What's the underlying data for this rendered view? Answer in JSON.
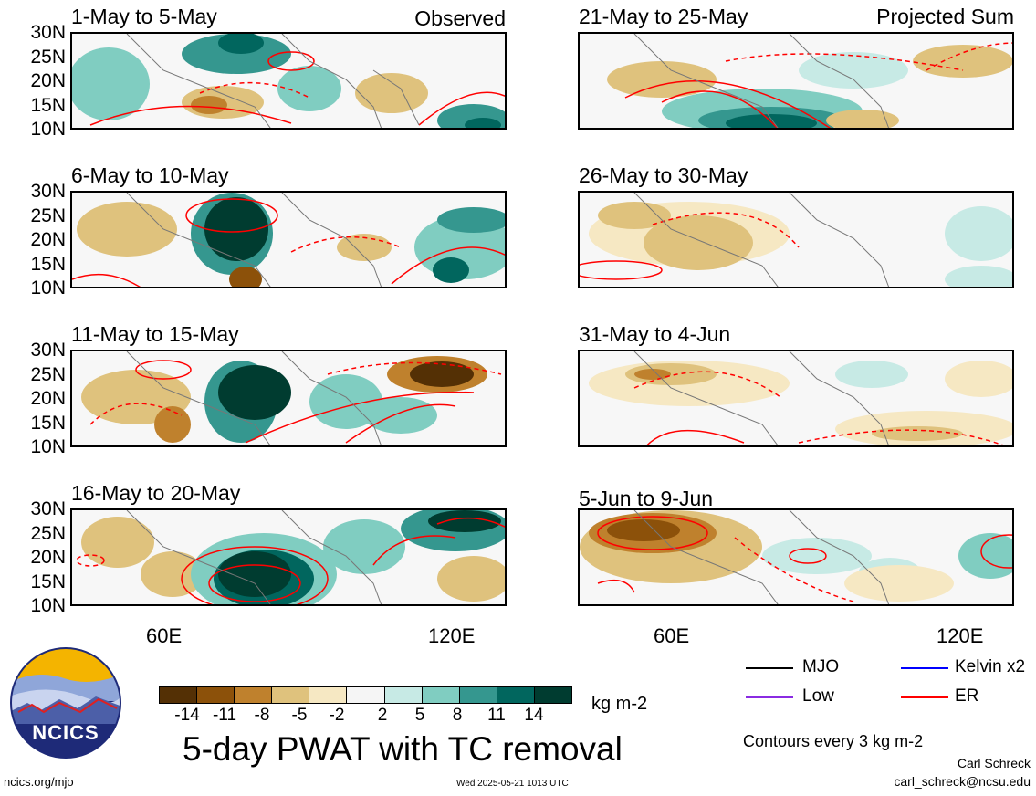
{
  "panels": [
    {
      "title": "1-May to 5-May",
      "corner_label": "Observed"
    },
    {
      "title": "21-May to 25-May",
      "corner_label": "Projected Sum"
    },
    {
      "title": "6-May to 10-May"
    },
    {
      "title": "26-May to 30-May"
    },
    {
      "title": "11-May to 15-May"
    },
    {
      "title": "31-May to 4-Jun"
    },
    {
      "title": "16-May to 20-May"
    },
    {
      "title": "5-Jun to 9-Jun"
    }
  ],
  "lat_labels": [
    "30N",
    "25N",
    "20N",
    "15N",
    "10N"
  ],
  "lon_labels": [
    "60E",
    "120E"
  ],
  "colorbar": {
    "labels": [
      "-14",
      "-11",
      "-8",
      "-5",
      "-2",
      "2",
      "5",
      "8",
      "11",
      "14"
    ],
    "unit": "kg m-2",
    "colors": [
      "#543005",
      "#8c510a",
      "#bf812d",
      "#dfc27d",
      "#f6e8c3",
      "#f5f5f5",
      "#c7eae5",
      "#80cdc1",
      "#35978f",
      "#01665e",
      "#003c30"
    ]
  },
  "main_title": "5-day PWAT with TC removal",
  "legend": [
    {
      "label": "MJO",
      "color": "#000000"
    },
    {
      "label": "Kelvin x2",
      "color": "#0000ff"
    },
    {
      "label": "Low",
      "color": "#8a2be2"
    },
    {
      "label": "ER",
      "color": "#ff0000"
    }
  ],
  "contour_note": "Contours every 3 kg m-2",
  "author": "Carl Schreck",
  "email": "carl_schreck@ncsu.edu",
  "site": "ncics.org/mjo",
  "timestamp": "Wed 2025-05-21 1013 UTC",
  "logo_text": "NCICS"
}
